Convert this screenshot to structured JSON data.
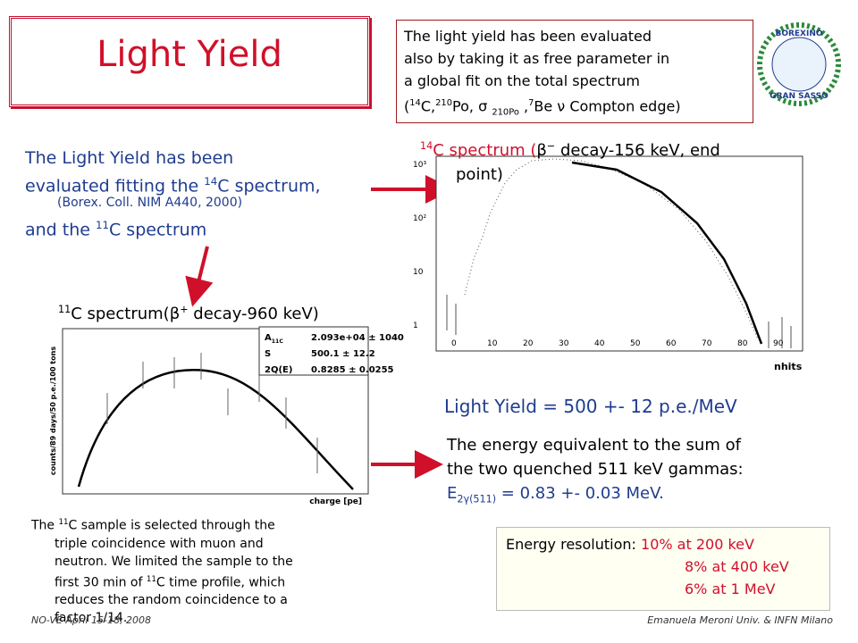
{
  "title": "Light Yield",
  "fit_note": {
    "line1": "The light yield has been evaluated",
    "line2": "also by taking it as free parameter in",
    "line3": "a global fit on the total spectrum",
    "line4": [
      "(",
      "14",
      "C,",
      "210",
      "Po, σ ",
      "210Po",
      " ,",
      "7",
      "Be ν Compton edge)"
    ]
  },
  "logo": [
    "BOREXINO",
    "GRAN SASSO"
  ],
  "intro": {
    "line1": "The Light Yield has been",
    "line2": [
      "evaluated fitting the ",
      "14",
      "C spectrum,"
    ],
    "reference": "(Borex. Coll. NIM A440, 2000)",
    "line3": [
      "and the ",
      "11",
      "C spectrum"
    ]
  },
  "c14_plot": {
    "caption": [
      "14",
      "C spectrum (",
      "β",
      "−",
      " decay-156 keV, end",
      "point)"
    ],
    "y_labels": [
      "10³",
      "10²",
      "10",
      "1"
    ],
    "x_labels": [
      "0",
      "10",
      "20",
      "30",
      "40",
      "50",
      "60",
      "70",
      "80",
      "90"
    ],
    "x_title": "nhits"
  },
  "c11_plot": {
    "caption": [
      "11",
      "C spectrum(",
      "β",
      "+",
      " decay-960 keV)"
    ],
    "y_title": "counts/89 days/50 p.e./100 tons",
    "x_title": "charge [pe]",
    "stats": [
      [
        "A",
        "11C",
        "2.093e+04 ± 1040"
      ],
      [
        "S",
        "",
        "500.1 ± 12.2"
      ],
      [
        "2Q(E",
        ")",
        "0.8285 ± 0.0255"
      ]
    ]
  },
  "result": "Light Yield = 500 +- 12 p.e./MeV",
  "energy": {
    "line1": "The energy equivalent to the sum of",
    "line2": "the two quenched 511 keV gammas:",
    "line3": [
      "E",
      "2γ(511)",
      " = 0.83 +- 0.03 MeV."
    ]
  },
  "sample_note": [
    "The ",
    "11",
    "C sample is selected through the",
    "triple  coincidence with muon and",
    "neutron. We limited the sample to the",
    "first 30 min of ",
    "11",
    "C time profile, which",
    "reduces the random coincidence to a",
    "factor 1/14."
  ],
  "resolution": {
    "label": "Energy resolution:",
    "rows": [
      "10% at 200 keV",
      "8% at 400 keV",
      "6% at 1 MeV"
    ]
  },
  "footer": {
    "left": "NO-VE April 15-18, 2008",
    "right": "Emanuela Meroni Univ. & INFN Milano"
  }
}
